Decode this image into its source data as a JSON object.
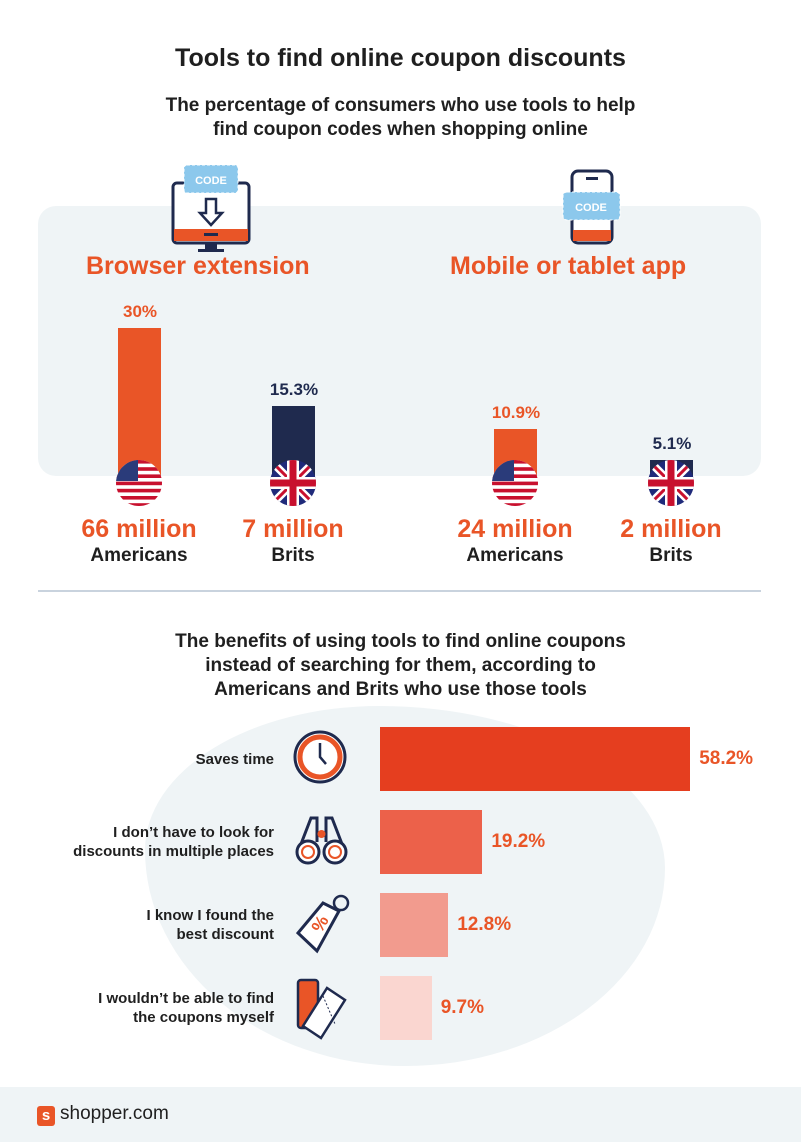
{
  "title": "Tools to find online coupon discounts",
  "subtitle_line1": "The percentage of consumers who use tools to help",
  "subtitle_line2": "find coupon codes when shopping online",
  "icon_code_label": "CODE",
  "colors": {
    "orange": "#e95527",
    "navy": "#1f2a4e",
    "panel": "#eff4f6"
  },
  "chart_data": [
    {
      "type": "bar",
      "title": "",
      "groups": [
        {
          "label": "Browser extension",
          "icon": "monitor-code-icon",
          "bars": [
            {
              "value": 30,
              "label": "30%",
              "population": "66 million",
              "group": "Americans",
              "flag": "us-flag-icon",
              "color": "#e95527"
            },
            {
              "value": 15.3,
              "label": "15.3%",
              "population": "7 million",
              "group": "Brits",
              "flag": "uk-flag-icon",
              "color": "#1f2a4e"
            }
          ]
        },
        {
          "label": "Mobile or tablet app",
          "icon": "phone-code-icon",
          "bars": [
            {
              "value": 10.9,
              "label": "10.9%",
              "population": "24 million",
              "group": "Americans",
              "flag": "us-flag-icon",
              "color": "#e95527"
            },
            {
              "value": 5.1,
              "label": "5.1%",
              "population": "2 million",
              "group": "Brits",
              "flag": "uk-flag-icon",
              "color": "#1f2a4e"
            }
          ]
        }
      ]
    },
    {
      "type": "bar",
      "orientation": "horizontal",
      "title_lines": [
        "The benefits of using tools to find online coupons",
        "instead of searching for them, according to",
        "Americans and Brits who use those tools"
      ],
      "categories": [
        {
          "lines": [
            "Saves time"
          ],
          "value": 58.2,
          "label": "58.2%",
          "icon": "clock-icon",
          "color": "#e53e1f"
        },
        {
          "lines": [
            "I don’t have to look for",
            "discounts in multiple places"
          ],
          "value": 19.2,
          "label": "19.2%",
          "icon": "binoculars-icon",
          "color": "#ec614a"
        },
        {
          "lines": [
            "I know I found the",
            "best discount"
          ],
          "value": 12.8,
          "label": "12.8%",
          "icon": "discount-tag-icon",
          "color": "#f29b8e"
        },
        {
          "lines": [
            "I wouldn’t be able to find",
            "the coupons myself"
          ],
          "value": 9.7,
          "label": "9.7%",
          "icon": "coupons-icon",
          "color": "#fad6d0"
        }
      ]
    }
  ],
  "footer": {
    "logo_letter": "s",
    "brand": "shopper.com"
  }
}
